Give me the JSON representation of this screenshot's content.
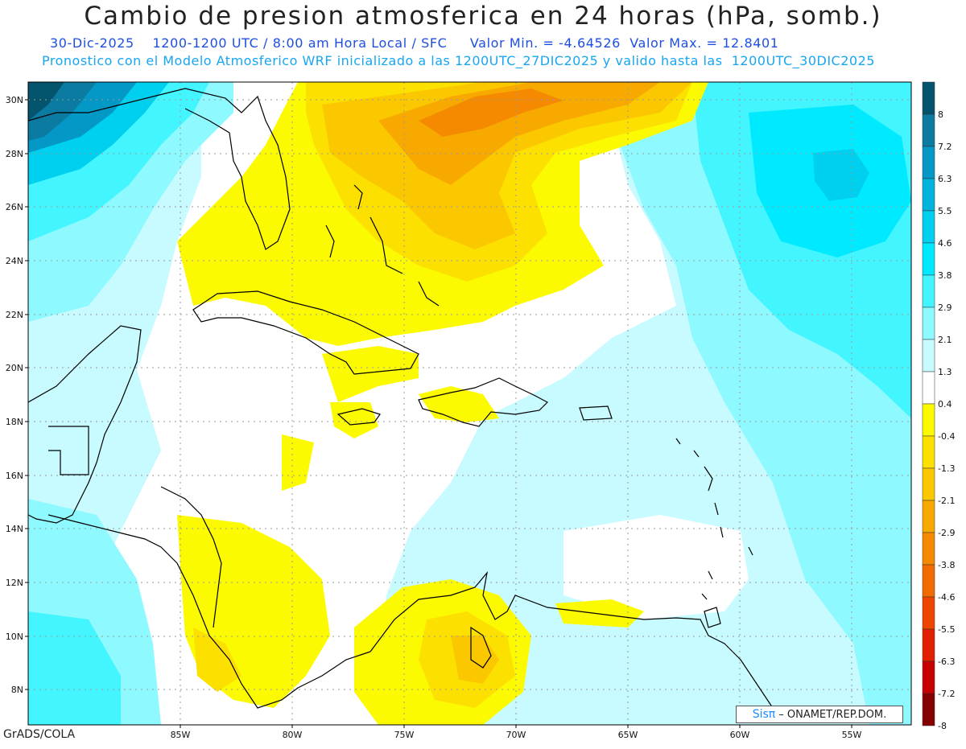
{
  "title": "Cambio de presion atmosferica en 24 horas (hPa, somb.)",
  "subtitle_date": "30-Dic-2025    1200-1200 UTC / 8:00 am Hora Local / SFC     Valor Min. = -4.64526  Valor Max. = 12.8401",
  "subtitle_model": "Pronostico con el Modelo Atmosferico WRF inicializado a las 1200UTC_27DIC2025 y valido hasta las  1200UTC_30DIC2025",
  "credit": "GrADS/COLA",
  "badge": {
    "sis": "Sisπ",
    "org": "– ONAMET/REP.DOM."
  },
  "axes": {
    "lat_labels": [
      "30N",
      "28N",
      "26N",
      "24N",
      "22N",
      "20N",
      "18N",
      "16N",
      "14N",
      "12N",
      "10N",
      "8N"
    ],
    "lon_labels": [
      "85W",
      "80W",
      "75W",
      "70W",
      "65W",
      "60W",
      "55W"
    ]
  },
  "colorbar": {
    "colors": [
      "#04546e",
      "#0b7ba2",
      "#0398c6",
      "#00b4db",
      "#00d0f0",
      "#00eaff",
      "#42f5ff",
      "#8ef9ff",
      "#c7fbff",
      "#ffffff",
      "#fcfa00",
      "#fce000",
      "#fbc800",
      "#f7a900",
      "#f58a00",
      "#f26b00",
      "#ee4500",
      "#e11f00",
      "#c70000",
      "#850000"
    ],
    "labels": [
      "8",
      "7.2",
      "6.3",
      "5.5",
      "4.6",
      "3.8",
      "2.9",
      "2.1",
      "1.3",
      "0.4",
      "-0.4",
      "-1.3",
      "-2.1",
      "-2.9",
      "-3.8",
      "-4.6",
      "-5.5",
      "-6.3",
      "-7.2",
      "-8"
    ]
  }
}
